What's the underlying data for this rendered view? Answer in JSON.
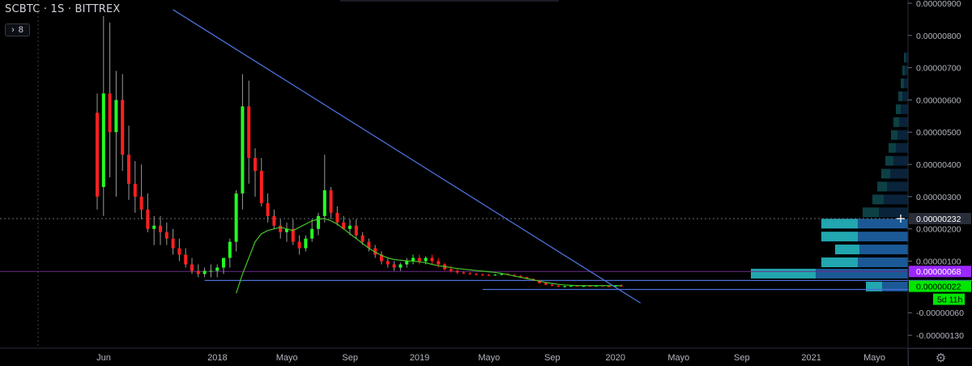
{
  "header": {
    "symbol": "SCBTC",
    "interval": "1S",
    "exchange": "BITTREX",
    "separator": "·",
    "collapse_count": "8"
  },
  "colors": {
    "background": "#000000",
    "up_candle": "#22ff22",
    "down_candle": "#ff2020",
    "trendline": "#4a6fd8",
    "moving_average": "#44c426",
    "crosshair_price_label": "#2a2e39",
    "purple_line": "#6b2a8a",
    "purple_label": "#9c27ff",
    "green_label": "#00e600",
    "volume_profile_light": "#26b8c2",
    "volume_profile_dark": "#1e63a6"
  },
  "chart_data": {
    "type": "candlestick",
    "title": "SCBTC · 1S · BITTREX",
    "x_tick_labels": [
      "Jun",
      "2018",
      "Mayo",
      "Sep",
      "2019",
      "Mayo",
      "Sep",
      "2020",
      "Mayo",
      "Sep",
      "2021",
      "Mayo"
    ],
    "y_tick_labels": [
      "0.00000900",
      "0.00000800",
      "0.00000700",
      "0.00000600",
      "0.00000500",
      "0.00000400",
      "0.00000300",
      "0.00000200",
      "0.00000100",
      "-0.00000060",
      "-0.00000130"
    ],
    "ylim": [
      -1.7e-06,
      9.1e-06
    ],
    "price_labels": {
      "crosshair": "0.00000232",
      "purple": "0.00000068",
      "last": "0.00000022",
      "countdown": "5d 11h"
    },
    "candles_ohlc_x1e8": [
      [
        560,
        620,
        260,
        300
      ],
      [
        330,
        860,
        240,
        620
      ],
      [
        620,
        840,
        360,
        500
      ],
      [
        500,
        690,
        300,
        600
      ],
      [
        600,
        680,
        380,
        430
      ],
      [
        430,
        520,
        290,
        340
      ],
      [
        340,
        410,
        250,
        300
      ],
      [
        300,
        400,
        230,
        260
      ],
      [
        260,
        310,
        190,
        200
      ],
      [
        200,
        240,
        150,
        210
      ],
      [
        210,
        240,
        150,
        190
      ],
      [
        190,
        220,
        150,
        170
      ],
      [
        170,
        200,
        120,
        140
      ],
      [
        140,
        170,
        100,
        120
      ],
      [
        120,
        140,
        80,
        90
      ],
      [
        90,
        110,
        60,
        70
      ],
      [
        70,
        90,
        50,
        60
      ],
      [
        60,
        80,
        50,
        70
      ],
      [
        70,
        90,
        50,
        70
      ],
      [
        70,
        90,
        50,
        80
      ],
      [
        80,
        110,
        60,
        110
      ],
      [
        110,
        170,
        80,
        160
      ],
      [
        160,
        320,
        130,
        310
      ],
      [
        310,
        680,
        260,
        580
      ],
      [
        580,
        660,
        340,
        420
      ],
      [
        420,
        450,
        300,
        380
      ],
      [
        380,
        420,
        270,
        280
      ],
      [
        280,
        310,
        220,
        240
      ],
      [
        240,
        260,
        200,
        210
      ],
      [
        210,
        230,
        170,
        190
      ],
      [
        190,
        220,
        160,
        200
      ],
      [
        200,
        230,
        150,
        160
      ],
      [
        160,
        180,
        120,
        140
      ],
      [
        140,
        180,
        130,
        170
      ],
      [
        170,
        230,
        160,
        200
      ],
      [
        200,
        250,
        180,
        240
      ],
      [
        240,
        430,
        220,
        320
      ],
      [
        320,
        330,
        230,
        250
      ],
      [
        250,
        270,
        210,
        220
      ],
      [
        220,
        240,
        200,
        200
      ],
      [
        200,
        230,
        180,
        210
      ],
      [
        210,
        230,
        170,
        180
      ],
      [
        180,
        190,
        150,
        160
      ],
      [
        160,
        170,
        130,
        140
      ],
      [
        140,
        150,
        110,
        120
      ],
      [
        120,
        130,
        90,
        100
      ],
      [
        100,
        110,
        80,
        90
      ],
      [
        90,
        100,
        70,
        80
      ],
      [
        80,
        95,
        70,
        90
      ],
      [
        90,
        110,
        80,
        100
      ],
      [
        100,
        120,
        90,
        110
      ],
      [
        110,
        120,
        90,
        100
      ],
      [
        100,
        115,
        90,
        110
      ],
      [
        110,
        120,
        90,
        100
      ],
      [
        100,
        110,
        80,
        90
      ],
      [
        90,
        95,
        70,
        75
      ],
      [
        75,
        85,
        65,
        70
      ],
      [
        70,
        75,
        60,
        65
      ],
      [
        65,
        70,
        60,
        62
      ],
      [
        62,
        66,
        58,
        60
      ],
      [
        60,
        64,
        56,
        58
      ],
      [
        58,
        62,
        55,
        57
      ],
      [
        57,
        60,
        54,
        56
      ],
      [
        56,
        60,
        55,
        58
      ],
      [
        58,
        62,
        56,
        60
      ],
      [
        60,
        63,
        55,
        57
      ],
      [
        57,
        60,
        52,
        54
      ],
      [
        54,
        57,
        48,
        50
      ],
      [
        50,
        52,
        44,
        45
      ],
      [
        45,
        47,
        38,
        40
      ],
      [
        40,
        42,
        30,
        32
      ],
      [
        32,
        34,
        25,
        27
      ],
      [
        27,
        30,
        22,
        24
      ],
      [
        24,
        26,
        20,
        21
      ],
      [
        21,
        24,
        19,
        22
      ],
      [
        22,
        25,
        20,
        24
      ],
      [
        24,
        26,
        21,
        22
      ],
      [
        22,
        25,
        20,
        23
      ],
      [
        23,
        25,
        21,
        22
      ],
      [
        22,
        26,
        20,
        24
      ],
      [
        24,
        26,
        21,
        22
      ],
      [
        22,
        24,
        20,
        21
      ],
      [
        21,
        25,
        20,
        24
      ],
      [
        24,
        28,
        21,
        22
      ]
    ],
    "moving_average_x1e8": [
      [
        22,
        0
      ],
      [
        23,
        60
      ],
      [
        24,
        110
      ],
      [
        25,
        160
      ],
      [
        26,
        185
      ],
      [
        27,
        195
      ],
      [
        28,
        200
      ],
      [
        29,
        205
      ],
      [
        30,
        200
      ],
      [
        31,
        195
      ],
      [
        32,
        205
      ],
      [
        33,
        215
      ],
      [
        34,
        225
      ],
      [
        35,
        230
      ],
      [
        36,
        232
      ],
      [
        37,
        225
      ],
      [
        38,
        215
      ],
      [
        39,
        200
      ],
      [
        40,
        185
      ],
      [
        41,
        170
      ],
      [
        42,
        155
      ],
      [
        43,
        140
      ],
      [
        44,
        128
      ],
      [
        45,
        118
      ],
      [
        46,
        110
      ],
      [
        47,
        105
      ],
      [
        48,
        103
      ],
      [
        49,
        101
      ],
      [
        50,
        100
      ],
      [
        51,
        98
      ],
      [
        52,
        95
      ],
      [
        53,
        90
      ],
      [
        54,
        86
      ],
      [
        55,
        83
      ],
      [
        56,
        80
      ],
      [
        57,
        77
      ],
      [
        58,
        75
      ],
      [
        59,
        73
      ],
      [
        60,
        71
      ],
      [
        61,
        69
      ],
      [
        62,
        67
      ],
      [
        63,
        65
      ],
      [
        64,
        62
      ],
      [
        65,
        58
      ],
      [
        66,
        54
      ],
      [
        67,
        50
      ],
      [
        68,
        46
      ],
      [
        69,
        42
      ],
      [
        70,
        38
      ],
      [
        71,
        34
      ],
      [
        72,
        31
      ],
      [
        73,
        28
      ],
      [
        74,
        26
      ],
      [
        75,
        25
      ],
      [
        76,
        24
      ],
      [
        77,
        24
      ],
      [
        78,
        24
      ],
      [
        79,
        24
      ],
      [
        80,
        24
      ],
      [
        81,
        24
      ],
      [
        82,
        24
      ],
      [
        83,
        24
      ]
    ],
    "volume_profile_rows": [
      {
        "price_x1e8": 730,
        "light": 2,
        "dark": 3
      },
      {
        "price_x1e8": 690,
        "light": 3,
        "dark": 4
      },
      {
        "price_x1e8": 650,
        "light": 4,
        "dark": 5
      },
      {
        "price_x1e8": 610,
        "light": 5,
        "dark": 7
      },
      {
        "price_x1e8": 570,
        "light": 6,
        "dark": 9
      },
      {
        "price_x1e8": 530,
        "light": 7,
        "dark": 11
      },
      {
        "price_x1e8": 490,
        "light": 8,
        "dark": 13
      },
      {
        "price_x1e8": 450,
        "light": 9,
        "dark": 15
      },
      {
        "price_x1e8": 410,
        "light": 10,
        "dark": 18
      },
      {
        "price_x1e8": 370,
        "light": 11,
        "dark": 22
      },
      {
        "price_x1e8": 330,
        "light": 12,
        "dark": 26
      },
      {
        "price_x1e8": 290,
        "light": 14,
        "dark": 30
      },
      {
        "price_x1e8": 250,
        "light": 20,
        "dark": 36
      },
      {
        "price_x1e8": 215,
        "light": 45,
        "dark": 62
      },
      {
        "price_x1e8": 175,
        "light": 45,
        "dark": 62
      },
      {
        "price_x1e8": 135,
        "light": 30,
        "dark": 60
      },
      {
        "price_x1e8": 95,
        "light": 45,
        "dark": 62
      },
      {
        "price_x1e8": 60,
        "light": 80,
        "dark": 114
      },
      {
        "price_x1e8": 20,
        "light": 20,
        "dark": 32
      }
    ],
    "trendline_x1e8": [
      [
        12,
        880
      ],
      [
        86,
        -30
      ]
    ],
    "support_lines_x1e8": [
      {
        "from": 17,
        "to": 141,
        "price": 40
      },
      {
        "from": 61,
        "to": 132,
        "price": 12
      }
    ],
    "horizontal_levels_x1e8": {
      "purple": 68,
      "crosshair": 232
    }
  }
}
